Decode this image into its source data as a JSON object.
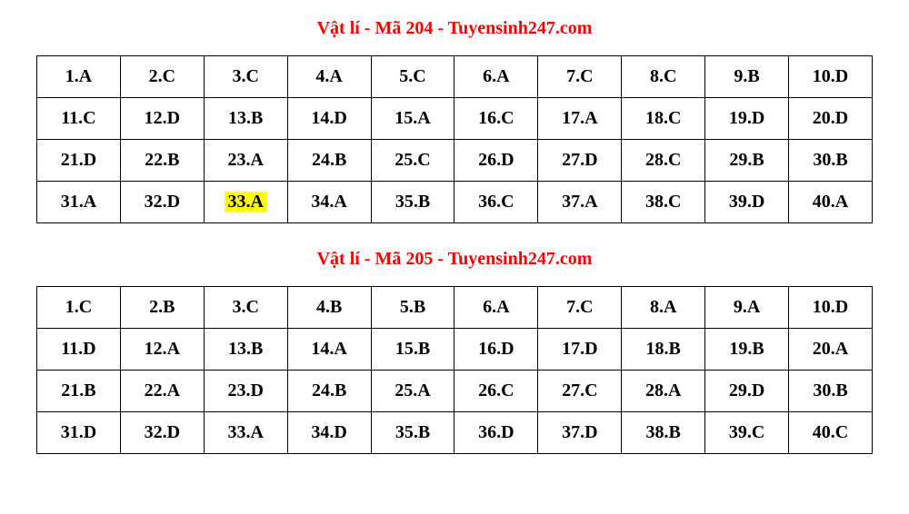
{
  "sections": [
    {
      "title": "Vật lí - Mã 204 - Tuyensinh247.com",
      "title_color": "#ff0000",
      "title_fontsize": 20,
      "columns": 10,
      "rows": [
        [
          {
            "text": "1.A"
          },
          {
            "text": "2.C"
          },
          {
            "text": "3.C"
          },
          {
            "text": "4.A"
          },
          {
            "text": "5.C"
          },
          {
            "text": "6.A"
          },
          {
            "text": "7.C"
          },
          {
            "text": "8.C"
          },
          {
            "text": "9.B"
          },
          {
            "text": "10.D"
          }
        ],
        [
          {
            "text": "11.C"
          },
          {
            "text": "12.D"
          },
          {
            "text": "13.B"
          },
          {
            "text": "14.D"
          },
          {
            "text": "15.A"
          },
          {
            "text": "16.C"
          },
          {
            "text": "17.A"
          },
          {
            "text": "18.C"
          },
          {
            "text": "19.D"
          },
          {
            "text": "20.D"
          }
        ],
        [
          {
            "text": "21.D"
          },
          {
            "text": "22.B"
          },
          {
            "text": "23.A"
          },
          {
            "text": "24.B"
          },
          {
            "text": "25.C"
          },
          {
            "text": "26.D"
          },
          {
            "text": "27.D"
          },
          {
            "text": "28.C"
          },
          {
            "text": "29.B"
          },
          {
            "text": "30.B"
          }
        ],
        [
          {
            "text": "31.A"
          },
          {
            "text": "32.D"
          },
          {
            "text": "33.A",
            "highlight": true
          },
          {
            "text": "34.A"
          },
          {
            "text": "35.B"
          },
          {
            "text": "36.C"
          },
          {
            "text": "37.A"
          },
          {
            "text": "38.C"
          },
          {
            "text": "39.D"
          },
          {
            "text": "40.A"
          }
        ]
      ]
    },
    {
      "title": "Vật lí - Mã 205 - Tuyensinh247.com",
      "title_color": "#ff0000",
      "title_fontsize": 20,
      "columns": 10,
      "rows": [
        [
          {
            "text": "1.C"
          },
          {
            "text": "2.B"
          },
          {
            "text": "3.C"
          },
          {
            "text": "4.B"
          },
          {
            "text": "5.B"
          },
          {
            "text": "6.A"
          },
          {
            "text": "7.C"
          },
          {
            "text": "8.A"
          },
          {
            "text": "9.A"
          },
          {
            "text": "10.D"
          }
        ],
        [
          {
            "text": "11.D"
          },
          {
            "text": "12.A"
          },
          {
            "text": "13.B"
          },
          {
            "text": "14.A"
          },
          {
            "text": "15.B"
          },
          {
            "text": "16.D"
          },
          {
            "text": "17.D"
          },
          {
            "text": "18.B"
          },
          {
            "text": "19.B"
          },
          {
            "text": "20.A"
          }
        ],
        [
          {
            "text": "21.B"
          },
          {
            "text": "22.A"
          },
          {
            "text": "23.D"
          },
          {
            "text": "24.B"
          },
          {
            "text": "25.A"
          },
          {
            "text": "26.C"
          },
          {
            "text": "27.C"
          },
          {
            "text": "28.A"
          },
          {
            "text": "29.D"
          },
          {
            "text": "30.B"
          }
        ],
        [
          {
            "text": "31.D"
          },
          {
            "text": "32.D"
          },
          {
            "text": "33.A"
          },
          {
            "text": "34.D"
          },
          {
            "text": "35.B"
          },
          {
            "text": "36.D"
          },
          {
            "text": "37.D"
          },
          {
            "text": "38.B"
          },
          {
            "text": "39.C"
          },
          {
            "text": "40.C"
          }
        ]
      ]
    }
  ],
  "styles": {
    "cell_font_size": 20,
    "cell_font_weight": "bold",
    "cell_border_color": "#000000",
    "cell_text_color": "#000000",
    "highlight_color": "#ffff00",
    "background_color": "#ffffff"
  }
}
